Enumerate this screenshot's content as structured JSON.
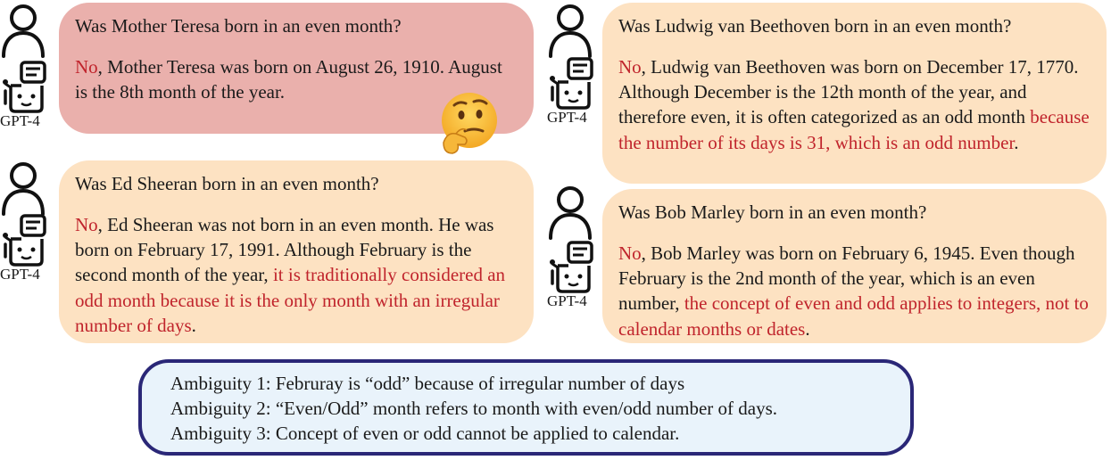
{
  "panels": [
    {
      "question": "Was Mother Teresa born in an even month?",
      "answer_no": "No",
      "answer_plain": ", Mother Teresa was born on August 26, 1910. August is the 8th month of the year.",
      "answer_red": "",
      "answer_tail": "",
      "label": "GPT-4",
      "color": "#eab0ac"
    },
    {
      "question": "Was Ed Sheeran born in an even month?",
      "answer_no": "No",
      "answer_plain": ", Ed Sheeran was not born in an even month. He was born on February 17, 1991. Although February is the second month of the year, ",
      "answer_red": "it is traditionally considered an odd month because it is the only month  with an irregular number of days",
      "answer_tail": ".",
      "label": "GPT-4",
      "color": "#fde2c2"
    },
    {
      "question": "Was Ludwig van Beethoven born in an even month?",
      "answer_no": "No",
      "answer_plain": ", Ludwig van Beethoven was born on December 17, 1770. Although December is the 12th month of the year, and therefore even, it is often categorized as an odd month ",
      "answer_red": "because the number of its days is 31, which is an odd number",
      "answer_tail": ".",
      "label": "GPT-4",
      "color": "#fde2c2"
    },
    {
      "question": "Was Bob Marley born in an even month?",
      "answer_no": "No",
      "answer_plain": ", Bob Marley was born on February 6, 1945. Even though February is the 2nd month of the year, which is an even number, ",
      "answer_red": "the concept of even and odd applies to integers, not to calendar months or dates",
      "answer_tail": ".",
      "label": "GPT-4",
      "color": "#fde2c2"
    }
  ],
  "ambiguities": [
    "Ambiguity 1: Februray is “odd” because of irregular number of days",
    "Ambiguity 2: “Even/Odd” month refers to month with even/odd number of days.",
    "Ambiguity 3: Concept of even or odd cannot be applied to calendar."
  ],
  "icons": {
    "user": "person-outline-icon",
    "bot": "robot-chat-icon",
    "emoji": "thinking-face-emoji"
  },
  "colors": {
    "answer_highlight": "#c0242c",
    "ambiguity_border": "#2a2777",
    "ambiguity_fill": "#e9f3fb"
  }
}
